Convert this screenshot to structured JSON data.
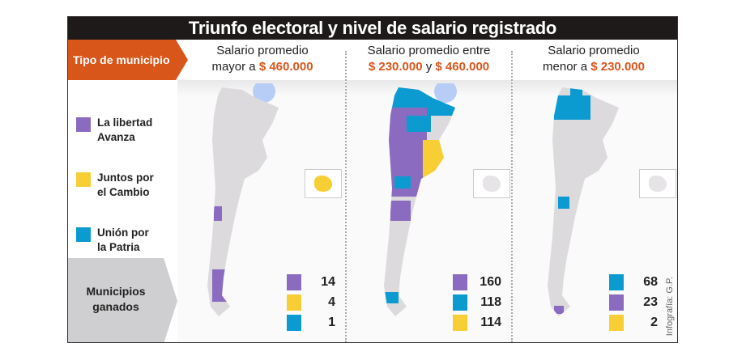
{
  "title": "Triunfo electoral y nivel de salario registrado",
  "row_label": "Tipo de municipio",
  "colors": {
    "lla": "#8b6bbf",
    "jxc": "#f7cf35",
    "uxp": "#0c9bd1",
    "accent": "#d9561b",
    "base": "#dcdadd"
  },
  "columns": [
    {
      "line1": "Salario promedio",
      "line2_prefix": "mayor a ",
      "amount": "$ 460.000",
      "counts": [
        {
          "party": "lla",
          "value": "14"
        },
        {
          "party": "jxc",
          "value": "4"
        },
        {
          "party": "uxp",
          "value": "1"
        }
      ]
    },
    {
      "line1": "Salario promedio entre",
      "amount_a": "$ 230.000",
      "joiner": " y ",
      "amount": "$ 460.000",
      "counts": [
        {
          "party": "lla",
          "value": "160"
        },
        {
          "party": "uxp",
          "value": "118"
        },
        {
          "party": "jxc",
          "value": "114"
        }
      ]
    },
    {
      "line1": "Salario promedio",
      "line2_prefix": "menor a ",
      "amount": "$ 230.000",
      "counts": [
        {
          "party": "uxp",
          "value": "68"
        },
        {
          "party": "lla",
          "value": "23"
        },
        {
          "party": "jxc",
          "value": "2"
        }
      ]
    }
  ],
  "legend": [
    {
      "party": "lla",
      "label1": "La libertad",
      "label2": "Avanza"
    },
    {
      "party": "jxc",
      "label1": "Juntos por",
      "label2": "el Cambio"
    },
    {
      "party": "uxp",
      "label1": "Unión por",
      "label2": "la Patria"
    }
  ],
  "footer_label1": "Municipios",
  "footer_label2": "ganados",
  "credit": "Infografía: G.P."
}
